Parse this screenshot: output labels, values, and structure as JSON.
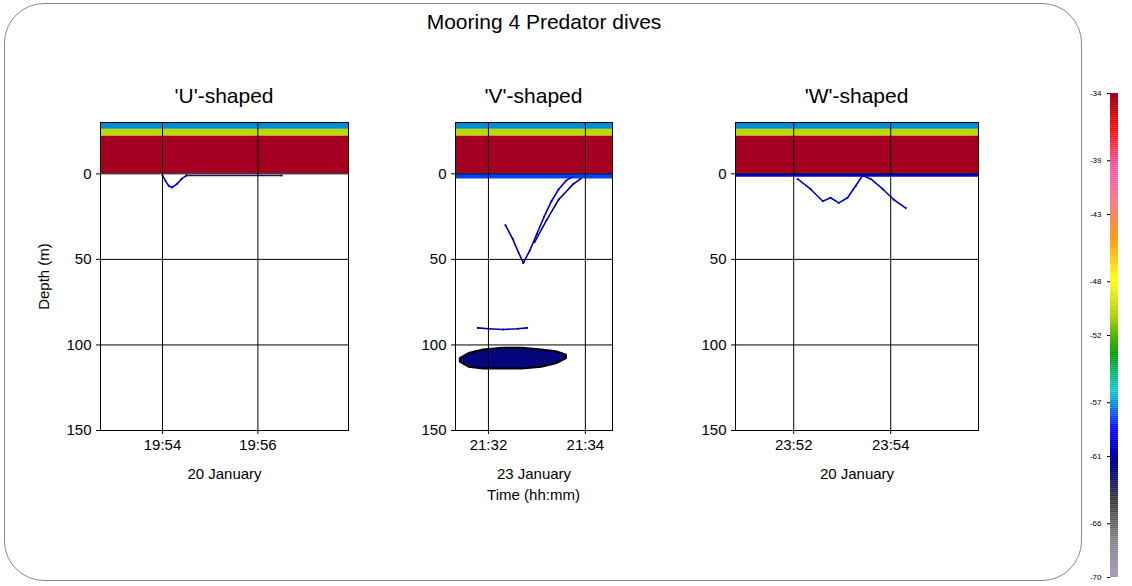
{
  "chart_data": {
    "type": "echogram",
    "title": "Mooring 4 Predator dives",
    "xlabel": "Time (hh:mm)",
    "ylabel": "Depth (m)",
    "grid": true,
    "colorbar": {
      "range": [
        -70,
        -34
      ],
      "ticks": [
        -34,
        -39,
        -43,
        -48,
        -52,
        -57,
        -61,
        -66,
        -70
      ],
      "colors": [
        "#a99cc4",
        "#7f7f7f",
        "#303030",
        "#000088",
        "#0000ff",
        "#00c8c8",
        "#00a000",
        "#a8d000",
        "#ffff00",
        "#ff9900",
        "#ff7f7f",
        "#ff4fa0",
        "#ff0000",
        "#a50021"
      ]
    },
    "panels": [
      {
        "title": "'U'-shaped",
        "xlabel": "20 January",
        "xlim": [
          1192.7,
          1197.9
        ],
        "xticks": [
          {
            "value": 1194,
            "label": "19:54"
          },
          {
            "value": 1196,
            "label": "19:56"
          }
        ],
        "ylim": [
          -30,
          150
        ],
        "yticks": [
          0,
          50,
          100,
          150
        ],
        "bands": [
          {
            "top": -30,
            "bottom": -26,
            "sv": -57
          },
          {
            "top": -26,
            "bottom": -22,
            "sv": -50
          },
          {
            "top": -22,
            "bottom": 0,
            "sv": -34
          }
        ],
        "traces": [
          {
            "x": [
              1194.0,
              1194.06,
              1194.13,
              1194.2,
              1194.3,
              1194.4,
              1194.5
            ],
            "depth": [
              1,
              4,
              7,
              8,
              6,
              3,
              1
            ],
            "sv": -60
          },
          {
            "x": [
              1194.5,
              1196.5
            ],
            "depth": [
              1,
              1
            ],
            "sv": -63
          }
        ],
        "schools": []
      },
      {
        "title": "'V'-shaped",
        "xlabel": "23 January",
        "xlim": [
          1291.32,
          1294.56
        ],
        "xticks": [
          {
            "value": 1292,
            "label": "21:32"
          },
          {
            "value": 1294,
            "label": "21:34"
          }
        ],
        "ylim": [
          -30,
          150
        ],
        "yticks": [
          0,
          50,
          100,
          150
        ],
        "bands": [
          {
            "top": -30,
            "bottom": -26,
            "sv": -57
          },
          {
            "top": -26,
            "bottom": -22,
            "sv": -50
          },
          {
            "top": -22,
            "bottom": 0,
            "sv": -34
          },
          {
            "top": 0,
            "bottom": 3,
            "sv": -58
          }
        ],
        "traces": [
          {
            "x": [
              1292.35,
              1292.5,
              1292.62,
              1292.72
            ],
            "depth": [
              30,
              38,
              46,
              52
            ],
            "sv": -61
          },
          {
            "x": [
              1292.72,
              1292.85,
              1293.0,
              1293.15,
              1293.3,
              1293.45,
              1293.6,
              1293.72
            ],
            "depth": [
              52,
              45,
              35,
              25,
              16,
              9,
              4,
              2
            ],
            "sv": -60
          },
          {
            "x": [
              1292.95,
              1293.2,
              1293.45,
              1293.75,
              1293.9
            ],
            "depth": [
              40,
              27,
              15,
              6,
              3
            ],
            "sv": -62
          },
          {
            "x": [
              1291.78,
              1292.0,
              1292.3,
              1292.6,
              1292.8
            ],
            "depth": [
              90,
              90.5,
              91,
              90.5,
              90
            ],
            "sv": -61
          }
        ],
        "schools": [
          {
            "x": [
              1291.42,
              1291.6,
              1291.9,
              1292.3,
              1292.7,
              1293.1,
              1293.4,
              1293.61
            ],
            "top": [
              108,
              105,
              103,
              102,
              102,
              103,
              104,
              106
            ],
            "bottom": [
              110,
              113,
              114,
              114,
              114,
              113,
              111,
              108
            ],
            "sv": -62
          }
        ]
      },
      {
        "title": "'W'-shaped",
        "xlabel": "20 January",
        "xlim": [
          1430.8,
          1435.81
        ],
        "xticks": [
          {
            "value": 1432,
            "label": "23:52"
          },
          {
            "value": 1434,
            "label": "23:54"
          }
        ],
        "ylim": [
          -30,
          150
        ],
        "yticks": [
          0,
          50,
          100,
          150
        ],
        "bands": [
          {
            "top": -30,
            "bottom": -26,
            "sv": -57
          },
          {
            "top": -26,
            "bottom": -22,
            "sv": -50
          },
          {
            "top": -22,
            "bottom": 0,
            "sv": -34
          },
          {
            "top": 0,
            "bottom": 2,
            "sv": -60
          }
        ],
        "traces": [
          {
            "x": [
              1432.08,
              1432.35,
              1432.6,
              1432.76,
              1432.93,
              1433.11,
              1433.28,
              1433.42,
              1433.59,
              1433.84,
              1434.06,
              1434.31
            ],
            "depth": [
              3,
              9,
              16,
              14,
              17,
              14,
              7,
              1,
              3,
              9,
              15,
              20
            ],
            "sv": -60
          }
        ],
        "schools": []
      }
    ]
  }
}
